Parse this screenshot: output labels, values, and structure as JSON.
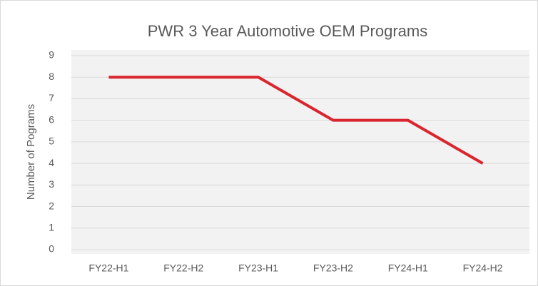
{
  "chart_data": {
    "type": "line",
    "title": "PWR 3 Year Automotive OEM Programs",
    "y_label": "Number of Pograms",
    "categories": [
      "FY22-H1",
      "FY22-H2",
      "FY23-H1",
      "FY23-H2",
      "FY24-H1",
      "FY24-H2"
    ],
    "values": [
      8,
      8,
      8,
      6,
      6,
      4
    ],
    "color": "#d9262e",
    "ylim": [
      0,
      9
    ],
    "yticks": [
      0,
      1,
      2,
      3,
      4,
      5,
      6,
      7,
      8,
      9
    ],
    "grid": true
  }
}
